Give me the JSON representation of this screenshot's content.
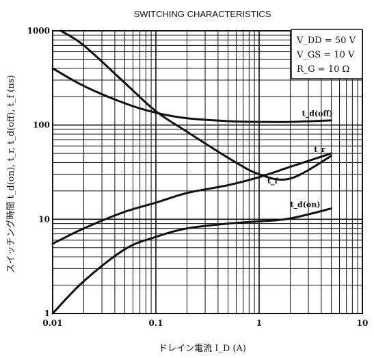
{
  "chart_data": {
    "type": "line",
    "title": "SWITCHING CHARACTERISTICS",
    "xlabel": "ドレイン電流 I_D (A)",
    "ylabel": "スイッチング時間 t_d(on), t_r, t_d(off), t_f (ns)",
    "xscale": "log",
    "yscale": "log",
    "xlim": [
      0.01,
      10
    ],
    "ylim": [
      1,
      1000
    ],
    "grid": true,
    "x_ticks": [
      "0.01",
      "0.1",
      "1",
      "10"
    ],
    "y_ticks": [
      "1",
      "10",
      "100",
      "1000"
    ],
    "conditions": [
      "V_DD = 50 V",
      "V_GS = 10 V",
      "R_G = 10 Ω"
    ],
    "legend_position": "top-right",
    "series": [
      {
        "name": "t_d(off)",
        "x": [
          0.01,
          0.02,
          0.05,
          0.1,
          0.2,
          0.5,
          1,
          2,
          5
        ],
        "values": [
          400,
          260,
          170,
          135,
          118,
          110,
          108,
          108,
          112
        ]
      },
      {
        "name": "t_r",
        "x": [
          0.012,
          0.02,
          0.05,
          0.1,
          0.2,
          0.5,
          1,
          2,
          5
        ],
        "values": [
          1000,
          700,
          280,
          140,
          85,
          45,
          30,
          27,
          47
        ]
      },
      {
        "name": "t_f",
        "x": [
          0.01,
          0.02,
          0.05,
          0.1,
          0.2,
          0.5,
          1,
          2,
          5
        ],
        "values": [
          5.5,
          8,
          12,
          15,
          19,
          23,
          28,
          36,
          50
        ]
      },
      {
        "name": "t_d(on)",
        "x": [
          0.01,
          0.02,
          0.05,
          0.1,
          0.2,
          0.5,
          1,
          2,
          5
        ],
        "values": [
          1,
          2.2,
          4.8,
          6.5,
          8,
          9,
          9.5,
          10.2,
          13
        ]
      }
    ]
  }
}
